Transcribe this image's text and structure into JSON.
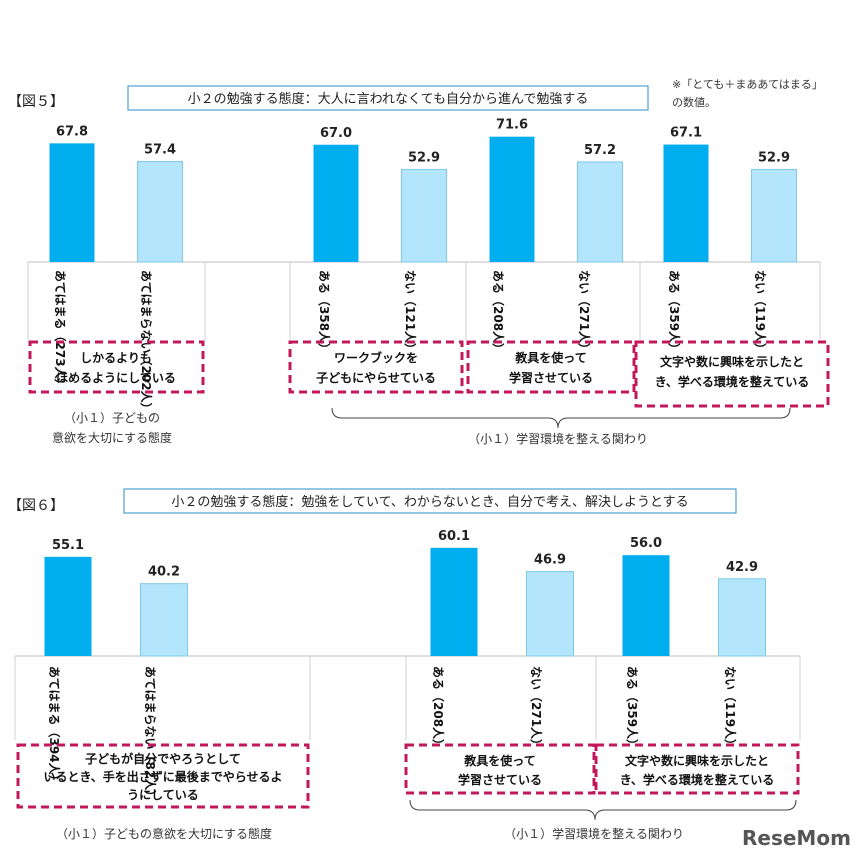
{
  "chart_data": [
    {
      "type": "bar",
      "figure_label": "【図５】",
      "title": "小２の勉強する態度：大人に言われなくても自分から進んで勉強する",
      "note": [
        "※「とても＋まああてはまる」",
        "の数値。"
      ],
      "ylim": [
        0,
        100
      ],
      "colors": {
        "primary": "#00AEEF",
        "secondary": "#B3E5FC",
        "dashed": "#C2185B"
      },
      "groups": [
        {
          "categories": [
            {
              "label": "あてはまる（273人）",
              "value": 67.8,
              "tone": "primary"
            },
            {
              "label": "あてはまらない（202人）",
              "value": 57.4,
              "tone": "secondary"
            }
          ],
          "box_lines": [
            "しかるよりも",
            "ほめるようにしている"
          ]
        },
        {
          "categories": [
            {
              "label": "ある（358人）",
              "value": 67.0,
              "tone": "primary"
            },
            {
              "label": "ない（121人）",
              "value": 52.9,
              "tone": "secondary"
            }
          ],
          "box_lines": [
            "ワークブックを",
            "子どもにやらせている"
          ]
        },
        {
          "categories": [
            {
              "label": "ある（208人）",
              "value": 71.6,
              "tone": "primary"
            },
            {
              "label": "ない（271人）",
              "value": 57.2,
              "tone": "secondary"
            }
          ],
          "box_lines": [
            "教具を使って",
            "学習させている"
          ]
        },
        {
          "categories": [
            {
              "label": "ある（359人）",
              "value": 67.1,
              "tone": "primary"
            },
            {
              "label": "ない（119人）",
              "value": 52.9,
              "tone": "secondary"
            }
          ],
          "box_lines": [
            "文字や数に興味を示したと",
            "き、学べる環境を整えている"
          ]
        }
      ],
      "captions": [
        {
          "lines": [
            "（小１）子どもの",
            "意欲を大切にする態度"
          ]
        },
        {
          "lines": [
            "（小１）学習環境を整える関わり"
          ]
        }
      ]
    },
    {
      "type": "bar",
      "figure_label": "【図６】",
      "title": "小２の勉強する態度：勉強をしていて、わからないとき、自分で考え、解決しようとする",
      "ylim": [
        0,
        100
      ],
      "colors": {
        "primary": "#00AEEF",
        "secondary": "#B3E5FC",
        "dashed": "#C2185B"
      },
      "groups": [
        {
          "categories": [
            {
              "label": "あてはまる（394人）",
              "value": 55.1,
              "tone": "primary"
            },
            {
              "label": "あてはまらない（82人）",
              "value": 40.2,
              "tone": "secondary"
            }
          ],
          "box_lines": [
            "子どもが自分でやろうとして",
            "いるとき、手を出さずに最後までやらせるよ",
            "うにしている"
          ]
        },
        {
          "categories": [
            {
              "label": "ある（208人）",
              "value": 60.1,
              "tone": "primary"
            },
            {
              "label": "ない（271人）",
              "value": 46.9,
              "tone": "secondary"
            }
          ],
          "box_lines": [
            "教具を使って",
            "学習させている"
          ]
        },
        {
          "categories": [
            {
              "label": "ある（359人）",
              "value": 56.0,
              "tone": "primary"
            },
            {
              "label": "ない（119人）",
              "value": 42.9,
              "tone": "secondary"
            }
          ],
          "box_lines": [
            "文字や数に興味を示したと",
            "き、学べる環境を整えている"
          ]
        }
      ],
      "captions": [
        {
          "lines": [
            "（小１）子どもの意欲を大切にする態度"
          ]
        },
        {
          "lines": [
            "（小１）学習環境を整える関わり"
          ]
        }
      ]
    }
  ],
  "watermark": "ReseMom"
}
